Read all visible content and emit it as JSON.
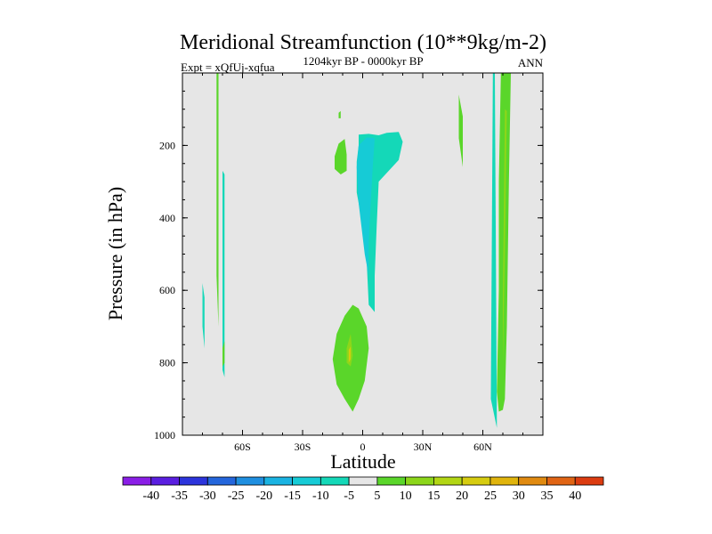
{
  "chart_data": {
    "type": "contour",
    "title": "Meridional Streamfunction (10**9kg/m-2)",
    "subtitle_left": "Expt = xQfUj-xqfua",
    "subtitle_center": "1204kyr BP - 0000kyr BP",
    "subtitle_right": "ANN",
    "xlabel": "Latitude",
    "ylabel": "Pressure (in hPa)",
    "xlim": [
      -90,
      90
    ],
    "ylim": [
      1000,
      0
    ],
    "x_ticks": [
      -60,
      -30,
      0,
      30,
      60
    ],
    "x_tick_labels": [
      "60S",
      "30S",
      "0",
      "30N",
      "60N"
    ],
    "y_ticks": [
      200,
      400,
      600,
      800,
      1000
    ],
    "y_tick_labels": [
      "200",
      "400",
      "600",
      "800",
      "1000"
    ],
    "colorbar": {
      "levels": [
        -40,
        -35,
        -30,
        -25,
        -20,
        -15,
        -10,
        -5,
        5,
        10,
        15,
        20,
        25,
        30,
        35,
        40
      ],
      "labels": [
        "-40",
        "-35",
        "-30",
        "-25",
        "-20",
        "-15",
        "-10",
        "-5",
        "5",
        "10",
        "15",
        "20",
        "25",
        "30",
        "35",
        "40"
      ],
      "colors": [
        "#8a1ee6",
        "#5a1ee0",
        "#2c34dc",
        "#2466dc",
        "#1f8fe0",
        "#1ab3e2",
        "#16cbd6",
        "#14d8b8",
        "#e6e6e6",
        "#5ad62a",
        "#8cd61a",
        "#b2d614",
        "#d6cc10",
        "#e0b40c",
        "#e08a10",
        "#e06414",
        "#dc3c10"
      ]
    },
    "background_color": "#e6e6e6",
    "regions": [
      {
        "name": "upper-tropical-neg",
        "color": "#14d8b8",
        "points": [
          [
            -2,
            170
          ],
          [
            3,
            168
          ],
          [
            8,
            172
          ],
          [
            12,
            165
          ],
          [
            18,
            163
          ],
          [
            20,
            190
          ],
          [
            18,
            240
          ],
          [
            13,
            270
          ],
          [
            8,
            300
          ],
          [
            7,
            420
          ],
          [
            6,
            560
          ],
          [
            6,
            660
          ],
          [
            3,
            640
          ],
          [
            2,
            520
          ],
          [
            0,
            420
          ],
          [
            -3,
            330
          ],
          [
            -3,
            245
          ],
          [
            -2,
            200
          ]
        ]
      },
      {
        "name": "upper-tropical-neg-core",
        "color": "#16cbd6",
        "points": [
          [
            -2,
            200
          ],
          [
            2,
            178
          ],
          [
            6,
            180
          ],
          [
            5,
            260
          ],
          [
            4,
            360
          ],
          [
            3,
            470
          ],
          [
            3,
            560
          ],
          [
            1,
            500
          ],
          [
            -2,
            360
          ],
          [
            -3,
            260
          ]
        ]
      },
      {
        "name": "upper-tropical-pos",
        "color": "#5ad62a",
        "points": [
          [
            -14,
            230
          ],
          [
            -12,
            195
          ],
          [
            -9,
            182
          ],
          [
            -8,
            225
          ],
          [
            -8,
            270
          ],
          [
            -11,
            280
          ],
          [
            -14,
            265
          ]
        ]
      },
      {
        "name": "lower-tropical-pos",
        "color": "#5ad62a",
        "points": [
          [
            -15,
            790
          ],
          [
            -13,
            720
          ],
          [
            -9,
            670
          ],
          [
            -5,
            640
          ],
          [
            -2,
            650
          ],
          [
            2,
            700
          ],
          [
            3,
            760
          ],
          [
            1,
            850
          ],
          [
            -2,
            900
          ],
          [
            -5,
            935
          ],
          [
            -9,
            900
          ],
          [
            -13,
            860
          ]
        ]
      },
      {
        "name": "lower-tropical-pos-core",
        "color": "#8cd61a",
        "points": [
          [
            -8,
            760
          ],
          [
            -6,
            720
          ],
          [
            -5,
            780
          ],
          [
            -6,
            810
          ],
          [
            -8,
            800
          ]
        ]
      },
      {
        "name": "lower-tropical-pos-peak",
        "color": "#d6cc10",
        "points": [
          [
            -7,
            765
          ],
          [
            -6,
            755
          ],
          [
            -6,
            790
          ],
          [
            -7,
            800
          ]
        ]
      },
      {
        "name": "high-north-neg",
        "color": "#14d8b8",
        "points": [
          [
            65,
            0
          ],
          [
            66,
            0
          ],
          [
            67,
            980
          ],
          [
            64,
            900
          ]
        ]
      },
      {
        "name": "high-north-pos",
        "color": "#5ad62a",
        "points": [
          [
            69,
            0
          ],
          [
            74,
            0
          ],
          [
            73,
            300
          ],
          [
            72,
            700
          ],
          [
            71,
            900
          ],
          [
            70,
            930
          ],
          [
            68,
            935
          ],
          [
            67,
            880
          ],
          [
            68,
            600
          ],
          [
            68,
            300
          ]
        ]
      },
      {
        "name": "high-north-pos-core",
        "color": "#8cd61a",
        "points": [
          [
            71,
            100
          ],
          [
            72,
            105
          ],
          [
            71,
            500
          ],
          [
            70,
            800
          ],
          [
            70,
            620
          ]
        ]
      },
      {
        "name": "mid-north-pos",
        "color": "#5ad62a",
        "points": [
          [
            48,
            60
          ],
          [
            50,
            120
          ],
          [
            50,
            260
          ],
          [
            48,
            180
          ]
        ]
      },
      {
        "name": "south-pos-line",
        "color": "#5ad62a",
        "points": [
          [
            -73,
            0
          ],
          [
            -72,
            0
          ],
          [
            -72,
            700
          ],
          [
            -73,
            560
          ]
        ]
      },
      {
        "name": "south-neg-1",
        "color": "#14d8b8",
        "points": [
          [
            -70,
            270
          ],
          [
            -69,
            280
          ],
          [
            -69,
            720
          ],
          [
            -69,
            840
          ],
          [
            -70,
            820
          ]
        ]
      },
      {
        "name": "south-pos-2",
        "color": "#5ad62a",
        "points": [
          [
            -70,
            760
          ],
          [
            -69,
            740
          ],
          [
            -69,
            800
          ],
          [
            -70,
            810
          ]
        ]
      },
      {
        "name": "south-neg-2",
        "color": "#14d8b8",
        "points": [
          [
            -80,
            580
          ],
          [
            -79,
            620
          ],
          [
            -79,
            760
          ],
          [
            -80,
            700
          ]
        ]
      },
      {
        "name": "upper-dot-pos",
        "color": "#5ad62a",
        "points": [
          [
            -12,
            110
          ],
          [
            -11,
            105
          ],
          [
            -11,
            125
          ],
          [
            -12,
            125
          ]
        ]
      }
    ]
  }
}
